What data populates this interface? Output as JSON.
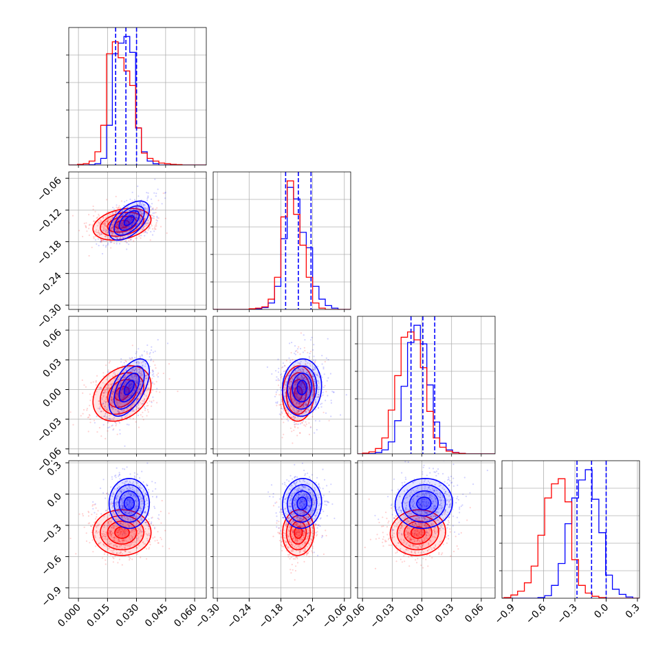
{
  "chart_data": {
    "type": "corner",
    "grid": true,
    "series_colors": {
      "blue": "#0000ff",
      "red": "#ff0000"
    },
    "quantile_line_color": "#0000ff",
    "params": [
      {
        "range": [
          -0.005,
          0.066
        ],
        "ticks": [
          0.0,
          0.015,
          0.03,
          0.045,
          0.06
        ],
        "tick_labels": [
          "0.000",
          "0.015",
          "0.030",
          "0.045",
          "0.060"
        ],
        "quantiles": [
          0.0192,
          0.0245,
          0.03
        ]
      },
      {
        "range": [
          -0.308,
          -0.048
        ],
        "ticks": [
          -0.3,
          -0.24,
          -0.18,
          -0.12,
          -0.06
        ],
        "tick_labels": [
          "−0.30",
          "−0.24",
          "−0.18",
          "−0.12",
          "−0.06"
        ],
        "quantiles": [
          -0.171,
          -0.147,
          -0.123
        ]
      },
      {
        "range": [
          -0.065,
          0.074
        ],
        "ticks": [
          -0.06,
          -0.03,
          0.0,
          0.03,
          0.06
        ],
        "tick_labels": [
          "−0.06",
          "−0.03",
          "0.00",
          "0.03",
          "0.06"
        ],
        "quantiles": [
          -0.011,
          0.001,
          0.013
        ]
      },
      {
        "range": [
          -1.0,
          0.32
        ],
        "ticks": [
          -0.9,
          -0.6,
          -0.3,
          0.0,
          0.3
        ],
        "tick_labels": [
          "−0.9",
          "−0.6",
          "−0.3",
          "0.0",
          "0.3"
        ],
        "quantiles": [
          -0.28,
          -0.14,
          0.0
        ]
      }
    ],
    "histograms": [
      {
        "bin_edges": [
          -0.0005,
          0.0025,
          0.0055,
          0.0085,
          0.0115,
          0.0145,
          0.0175,
          0.0205,
          0.0235,
          0.0265,
          0.0295,
          0.0325,
          0.0355,
          0.0385,
          0.0415,
          0.0445,
          0.0475,
          0.0505,
          0.0535,
          0.0565,
          0.0595
        ],
        "blue": [
          0.0,
          0.0,
          0.2,
          1.0,
          5.0,
          30.0,
          84.0,
          92.0,
          97.0,
          85.0,
          28.0,
          10.0,
          3.0,
          1.0,
          0.0,
          0.0,
          0.0,
          0.0,
          0.0,
          0.0
        ],
        "red": [
          0.5,
          1.0,
          3.0,
          10.0,
          30.0,
          84.0,
          93.0,
          81.0,
          71.0,
          60.0,
          28.0,
          9.0,
          5.0,
          3.0,
          1.5,
          1.0,
          0.5,
          0.3,
          0.0,
          0.0
        ]
      },
      {
        "bin_edges": [
          -0.3,
          -0.288,
          -0.276,
          -0.264,
          -0.252,
          -0.24,
          -0.228,
          -0.216,
          -0.204,
          -0.192,
          -0.18,
          -0.168,
          -0.156,
          -0.144,
          -0.132,
          -0.12,
          -0.108,
          -0.096,
          -0.084,
          -0.072,
          -0.06
        ],
        "blue": [
          0.0,
          0.0,
          0.0,
          0.0,
          0.0,
          0.0,
          0.5,
          1.5,
          5.0,
          18.0,
          55.0,
          95.0,
          86.0,
          60.0,
          48.0,
          18.0,
          8.0,
          3.0,
          1.0,
          0.0
        ],
        "red": [
          0.0,
          0.0,
          0.0,
          0.0,
          0.0,
          0.5,
          1.0,
          2.0,
          8.0,
          25.0,
          72.0,
          100.0,
          74.0,
          50.0,
          25.0,
          5.0,
          1.0,
          0.0,
          0.0,
          0.0
        ]
      },
      {
        "bin_edges": [
          -0.06,
          -0.0535,
          -0.047,
          -0.0405,
          -0.034,
          -0.0275,
          -0.021,
          -0.0145,
          -0.008,
          -0.0015,
          0.005,
          0.0115,
          0.018,
          0.0245,
          0.031,
          0.0375,
          0.044,
          0.0505,
          0.057,
          0.0635,
          0.07
        ],
        "blue": [
          0.0,
          0.2,
          1.0,
          3.0,
          9.0,
          25.0,
          51.0,
          84.0,
          97.0,
          83.0,
          52.0,
          24.0,
          8.0,
          3.0,
          1.0,
          0.3,
          0.0,
          0.0,
          0.0,
          0.0
        ],
        "red": [
          0.5,
          1.5,
          4.0,
          12.0,
          33.0,
          59.0,
          88.0,
          92.0,
          86.0,
          65.0,
          32.0,
          12.0,
          5.0,
          2.0,
          0.8,
          0.3,
          0.0,
          0.0,
          0.0,
          0.0
        ]
      },
      {
        "bin_edges": [
          -0.98,
          -0.915,
          -0.85,
          -0.785,
          -0.72,
          -0.655,
          -0.59,
          -0.525,
          -0.46,
          -0.395,
          -0.33,
          -0.265,
          -0.2,
          -0.135,
          -0.07,
          -0.005,
          0.06,
          0.125,
          0.19,
          0.255,
          0.32
        ],
        "blue": [
          0.0,
          0.0,
          0.0,
          0.0,
          0.0,
          0.5,
          2.0,
          10.0,
          27.0,
          58.0,
          78.0,
          92.0,
          100.0,
          77.0,
          51.0,
          18.0,
          7.0,
          3.0,
          1.0,
          0.0
        ],
        "red": [
          0.5,
          2.5,
          5.5,
          12.0,
          25.0,
          49.0,
          78.0,
          89.0,
          93.0,
          75.0,
          30.0,
          10.0,
          4.0,
          1.5,
          0.5,
          0.0,
          0.0,
          0.0,
          0.0,
          0.0
        ]
      }
    ],
    "contours": {
      "1-0": {
        "blue": {
          "center": [
            0.0262,
            -0.14
          ],
          "sd": [
            0.0052,
            0.0185
          ],
          "rho": 0.55
        },
        "red": {
          "center": [
            0.0225,
            -0.147
          ],
          "sd": [
            0.0075,
            0.015
          ],
          "rho": 0.3
        }
      },
      "2-0": {
        "blue": {
          "center": [
            0.0262,
            0.002
          ],
          "sd": [
            0.0052,
            0.0145
          ],
          "rho": 0.55
        },
        "red": {
          "center": [
            0.0225,
            -0.004
          ],
          "sd": [
            0.0075,
            0.014
          ],
          "rho": 0.3
        }
      },
      "2-1": {
        "blue": {
          "center": [
            -0.14,
            0.002
          ],
          "sd": [
            0.0185,
            0.0145
          ],
          "rho": 0.05
        },
        "red": {
          "center": [
            -0.147,
            -0.004
          ],
          "sd": [
            0.015,
            0.014
          ],
          "rho": 0.05
        }
      },
      "3-0": {
        "blue": {
          "center": [
            0.0262,
            -0.09
          ],
          "sd": [
            0.0052,
            0.12
          ],
          "rho": 0.0
        },
        "red": {
          "center": [
            0.0225,
            -0.37
          ],
          "sd": [
            0.0075,
            0.11
          ],
          "rho": 0.0
        }
      },
      "3-1": {
        "blue": {
          "center": [
            -0.14,
            -0.09
          ],
          "sd": [
            0.0185,
            0.12
          ],
          "rho": 0.05
        },
        "red": {
          "center": [
            -0.147,
            -0.37
          ],
          "sd": [
            0.015,
            0.11
          ],
          "rho": 0.05
        }
      },
      "3-2": {
        "blue": {
          "center": [
            0.002,
            -0.09
          ],
          "sd": [
            0.0145,
            0.12
          ],
          "rho": 0.05
        },
        "red": {
          "center": [
            -0.004,
            -0.37
          ],
          "sd": [
            0.014,
            0.11
          ],
          "rho": 0.05
        }
      }
    },
    "contour_levels_sigma": [
      0.5,
      1.0,
      1.5,
      2.0
    ]
  }
}
